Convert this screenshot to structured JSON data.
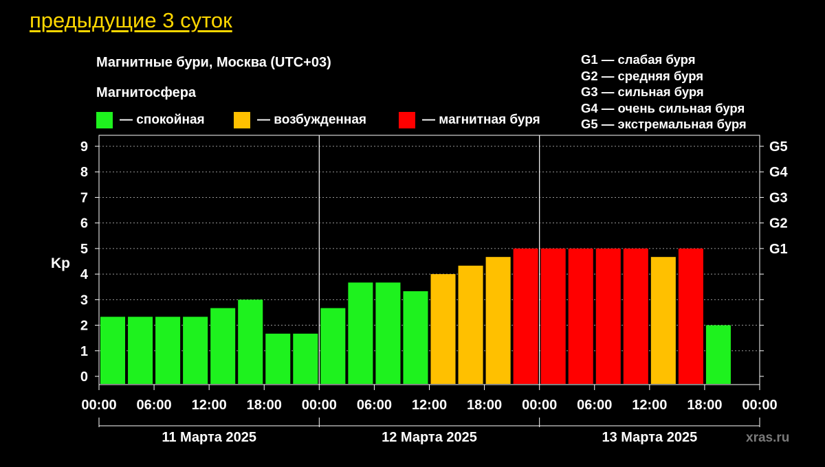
{
  "header": {
    "link_label": "предыдущие 3 суток"
  },
  "colors": {
    "quiet": "#1ef21e",
    "excited": "#ffc000",
    "storm": "#ff0000",
    "background": "#000000",
    "link": "#ffd700"
  },
  "legend": {
    "quiet": "— спокойная",
    "excited": "— возбужденная",
    "storm": "— магнитная буря"
  },
  "g_legend": [
    "G1 — слабая буря",
    "G2 — средняя буря",
    "G3 — сильная буря",
    "G4 — очень сильная буря",
    "G5 — экстремальная буря"
  ],
  "watermark": "xras.ru",
  "chart_data": {
    "type": "bar",
    "title": "Магнитные бури, Москва (UTC+03)",
    "subtitle": "Магнитосфера",
    "ylabel": "Kp",
    "ylim": [
      0,
      9
    ],
    "y_ticks": [
      "0",
      "1",
      "2",
      "3",
      "4",
      "5",
      "6",
      "7",
      "8",
      "9"
    ],
    "right_ticks": [
      {
        "kp": 5,
        "label": "G1"
      },
      {
        "kp": 6,
        "label": "G2"
      },
      {
        "kp": 7,
        "label": "G3"
      },
      {
        "kp": 8,
        "label": "G4"
      },
      {
        "kp": 9,
        "label": "G5"
      }
    ],
    "x_ticks": [
      "00:00",
      "06:00",
      "12:00",
      "18:00",
      "00:00",
      "06:00",
      "12:00",
      "18:00",
      "00:00",
      "06:00",
      "12:00",
      "18:00",
      "00:00"
    ],
    "days": [
      "11 Марта 2025",
      "12 Марта 2025",
      "13 Марта 2025"
    ],
    "grid": true,
    "bars": [
      {
        "kp": 2.33,
        "level": "quiet"
      },
      {
        "kp": 2.33,
        "level": "quiet"
      },
      {
        "kp": 2.33,
        "level": "quiet"
      },
      {
        "kp": 2.33,
        "level": "quiet"
      },
      {
        "kp": 2.67,
        "level": "quiet"
      },
      {
        "kp": 3.0,
        "level": "quiet"
      },
      {
        "kp": 1.67,
        "level": "quiet"
      },
      {
        "kp": 1.67,
        "level": "quiet"
      },
      {
        "kp": 2.67,
        "level": "quiet"
      },
      {
        "kp": 3.67,
        "level": "quiet"
      },
      {
        "kp": 3.67,
        "level": "quiet"
      },
      {
        "kp": 3.33,
        "level": "quiet"
      },
      {
        "kp": 4.0,
        "level": "excited"
      },
      {
        "kp": 4.33,
        "level": "excited"
      },
      {
        "kp": 4.67,
        "level": "excited"
      },
      {
        "kp": 5.0,
        "level": "storm"
      },
      {
        "kp": 5.0,
        "level": "storm"
      },
      {
        "kp": 5.0,
        "level": "storm"
      },
      {
        "kp": 5.0,
        "level": "storm"
      },
      {
        "kp": 5.0,
        "level": "storm"
      },
      {
        "kp": 4.67,
        "level": "excited"
      },
      {
        "kp": 5.0,
        "level": "storm"
      },
      {
        "kp": 2.0,
        "level": "quiet"
      }
    ]
  }
}
